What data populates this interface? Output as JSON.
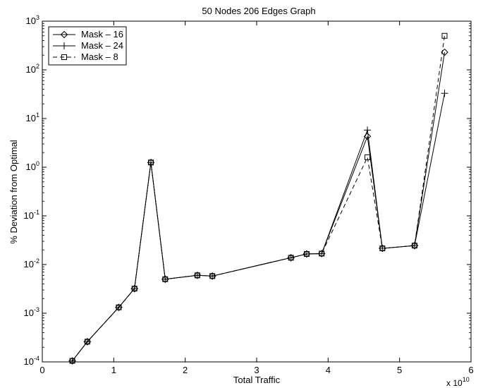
{
  "chart_data": {
    "type": "line",
    "title": "50 Nodes 206 Edges Graph",
    "xlabel": "Total Traffic",
    "ylabel": "% Deviation from Optimal",
    "x_multiplier_label": "x 10",
    "x_multiplier_exponent": "10",
    "xlim": [
      0,
      6
    ],
    "ylim": [
      0.0001,
      1000
    ],
    "yscale": "log",
    "grid": false,
    "legend_position": "top-left",
    "x_ticks": [
      0,
      1,
      2,
      3,
      4,
      5,
      6
    ],
    "x_tick_labels": [
      "0",
      "1",
      "2",
      "3",
      "4",
      "5",
      "6"
    ],
    "y_ticks": [
      0.0001,
      0.001,
      0.01,
      0.1,
      1,
      10,
      100,
      1000
    ],
    "y_tick_base": "10",
    "y_tick_exponents": [
      "-4",
      "-3",
      "-2",
      "-1",
      "0",
      "1",
      "2",
      "3"
    ],
    "series": [
      {
        "name": "Mask – 16",
        "marker": "diamond",
        "line": "solid",
        "points": [
          [
            0.42,
            0.000105
          ],
          [
            0.63,
            0.00026
          ],
          [
            1.07,
            0.00132
          ],
          [
            1.29,
            0.0032
          ],
          [
            1.52,
            1.25
          ],
          [
            1.72,
            0.005
          ],
          [
            2.17,
            0.006
          ],
          [
            2.38,
            0.0058
          ],
          [
            3.48,
            0.0138
          ],
          [
            3.7,
            0.0165
          ],
          [
            3.91,
            0.0168
          ],
          [
            4.55,
            4.3
          ],
          [
            4.76,
            0.0215
          ],
          [
            5.21,
            0.0245
          ],
          [
            5.63,
            230
          ]
        ]
      },
      {
        "name": "Mask – 24",
        "marker": "plus",
        "line": "solid",
        "points": [
          [
            0.42,
            0.000105
          ],
          [
            0.63,
            0.00026
          ],
          [
            1.07,
            0.00132
          ],
          [
            1.29,
            0.0032
          ],
          [
            1.52,
            1.25
          ],
          [
            1.72,
            0.005
          ],
          [
            2.17,
            0.006
          ],
          [
            2.38,
            0.0058
          ],
          [
            3.48,
            0.0138
          ],
          [
            3.7,
            0.0165
          ],
          [
            3.91,
            0.0168
          ],
          [
            4.55,
            5.8
          ],
          [
            4.76,
            0.0215
          ],
          [
            5.21,
            0.0245
          ],
          [
            5.63,
            33
          ]
        ]
      },
      {
        "name": "Mask – 8",
        "marker": "square",
        "line": "dashed",
        "points": [
          [
            0.42,
            0.000105
          ],
          [
            0.63,
            0.00026
          ],
          [
            1.07,
            0.00132
          ],
          [
            1.29,
            0.0032
          ],
          [
            1.52,
            1.25
          ],
          [
            1.72,
            0.005
          ],
          [
            2.17,
            0.006
          ],
          [
            2.38,
            0.0058
          ],
          [
            3.48,
            0.0138
          ],
          [
            3.7,
            0.0165
          ],
          [
            3.91,
            0.0168
          ],
          [
            4.55,
            1.6
          ],
          [
            4.76,
            0.0215
          ],
          [
            5.21,
            0.0245
          ],
          [
            5.63,
            500
          ]
        ]
      }
    ]
  }
}
